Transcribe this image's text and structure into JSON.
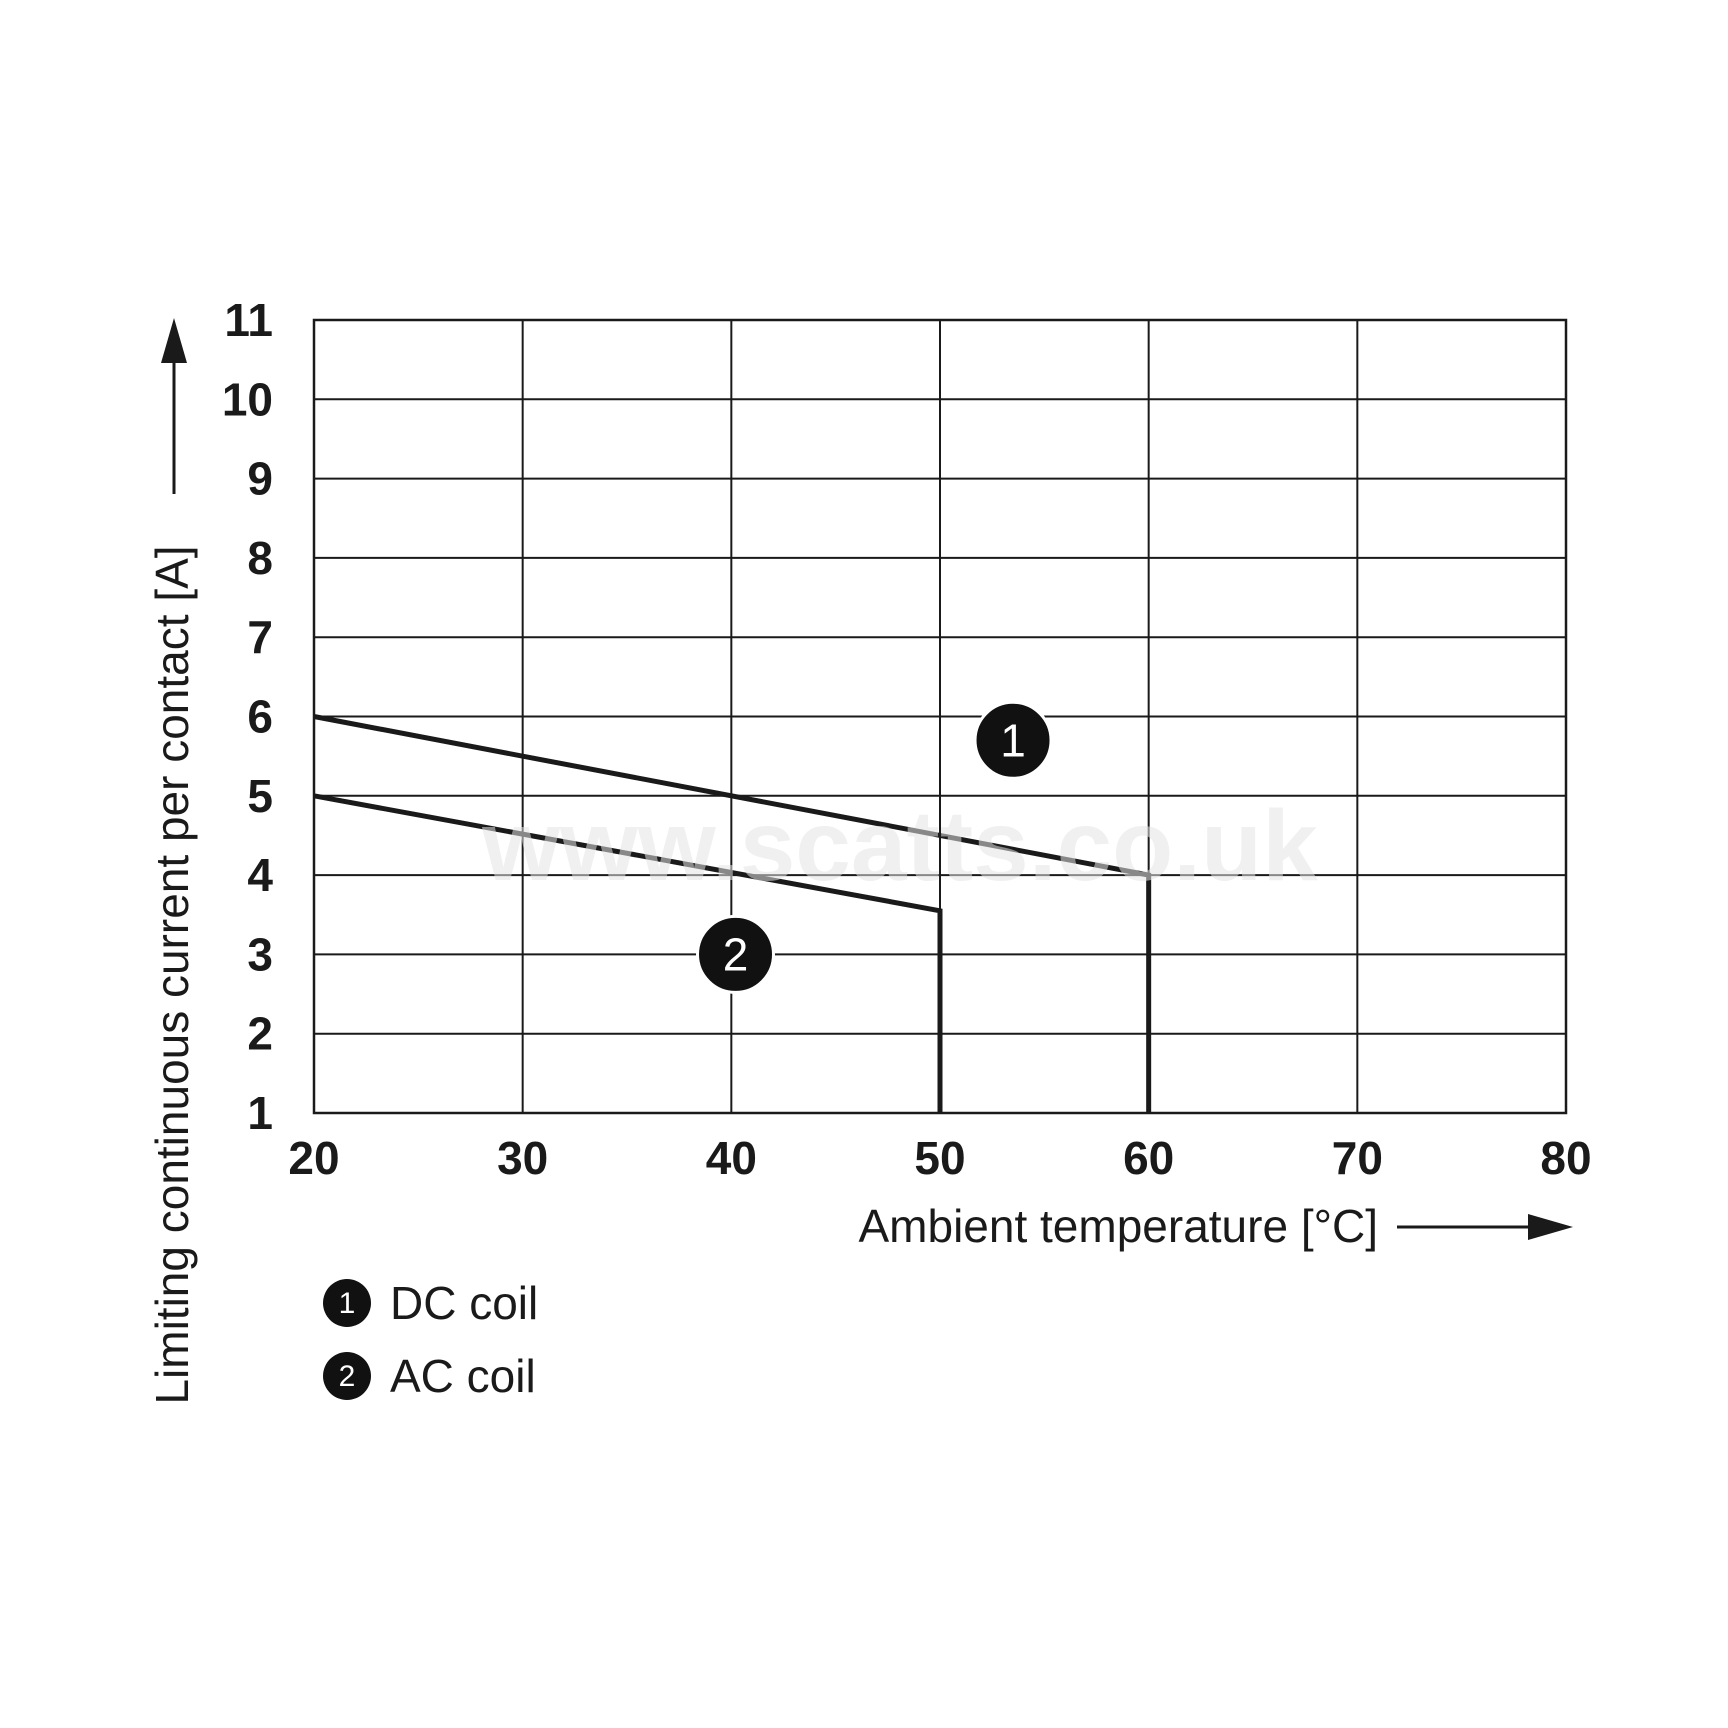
{
  "chart_data": {
    "type": "line",
    "xlabel": "Ambient temperature [°C]",
    "ylabel": "Limiting continuous current per contact [A]",
    "xlim": [
      20,
      80
    ],
    "ylim": [
      1,
      11
    ],
    "x_ticks": [
      20,
      30,
      40,
      50,
      60,
      70,
      80
    ],
    "y_ticks": [
      1,
      2,
      3,
      4,
      5,
      6,
      7,
      8,
      9,
      10,
      11
    ],
    "grid": true,
    "series": [
      {
        "name": "DC coil",
        "marker_label": "1",
        "points": [
          [
            20,
            6
          ],
          [
            60,
            4
          ],
          [
            60,
            1
          ]
        ]
      },
      {
        "name": "AC coil",
        "marker_label": "2",
        "points": [
          [
            20,
            5
          ],
          [
            50,
            3.55
          ],
          [
            50,
            1
          ]
        ]
      }
    ],
    "legend_placement": "bottom-left"
  },
  "watermark": "www.scatts.co.uk"
}
